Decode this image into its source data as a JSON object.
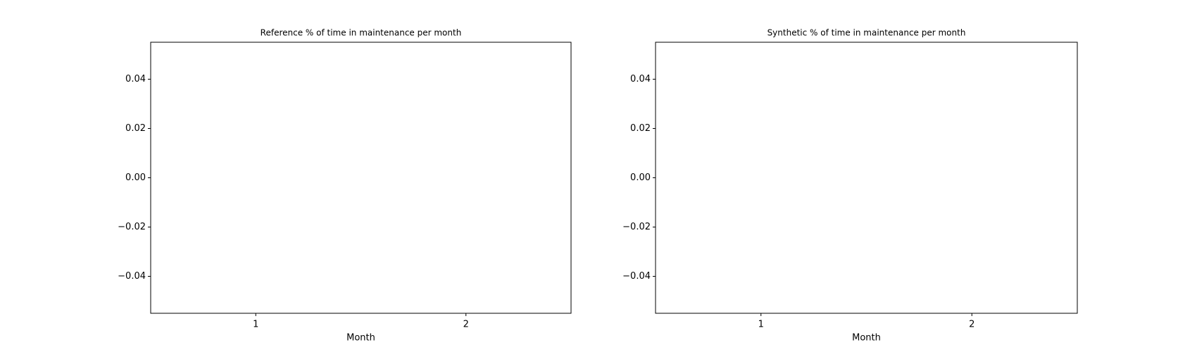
{
  "chart_data": [
    {
      "type": "bar",
      "title": "Reference % of time in maintenance per month",
      "x_label": "Month",
      "x": [
        1,
        2
      ],
      "values": [
        0,
        0
      ],
      "color": "#1f77b4",
      "xlim": [
        0.5,
        2.5
      ],
      "xticks": [
        1,
        2
      ],
      "ylim": [
        -0.055,
        0.055
      ],
      "yticks": [
        {
          "value": -0.04,
          "label": "−0.04"
        },
        {
          "value": -0.02,
          "label": "−0.02"
        },
        {
          "value": 0,
          "label": "0.00"
        },
        0.02,
        0.04
      ]
    },
    {
      "type": "bar",
      "title": "Synthetic % of time in maintenance per month",
      "x_label": "Month",
      "x": [
        1,
        2
      ],
      "values": [
        0,
        0
      ],
      "color": "#1f77b4",
      "xlim": [
        0.5,
        2.5
      ],
      "xticks": [
        1,
        2
      ],
      "ylim": [
        -0.055,
        0.055
      ],
      "yticks": [
        {
          "value": -0.04,
          "label": "−0.04"
        },
        {
          "value": -0.02,
          "label": "−0.02"
        },
        {
          "value": 0,
          "label": "0.00"
        },
        0.02,
        0.04
      ]
    }
  ]
}
